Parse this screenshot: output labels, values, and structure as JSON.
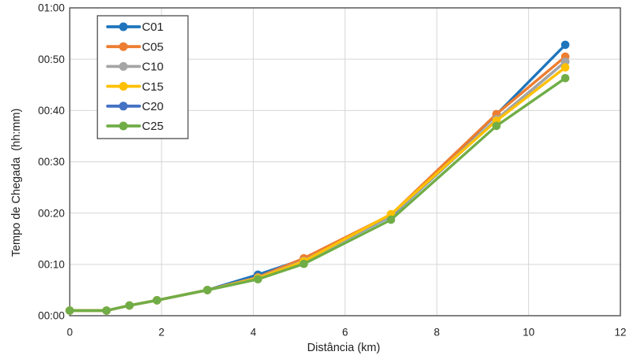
{
  "chart_data": {
    "type": "line",
    "title": "",
    "xlabel": "Distância (km)",
    "ylabel": "Tempo de Chegada  (hh:mm)",
    "x_unit": "km",
    "y_unit": "arrival time hh:mm (stored as minutes since 00:00)",
    "xlim": [
      0,
      12
    ],
    "ylim_minutes": [
      0,
      60
    ],
    "grid": true,
    "legend_position": "top-left-inside",
    "marker": "circle",
    "x": [
      0,
      0.8,
      1.3,
      1.9,
      3.0,
      4.1,
      5.1,
      7.0,
      9.3,
      10.8
    ],
    "x_ticks": [
      0,
      2,
      4,
      6,
      8,
      10,
      12
    ],
    "y_ticks": [
      {
        "label": "00:00",
        "minutes": 0
      },
      {
        "label": "00:10",
        "minutes": 10
      },
      {
        "label": "00:20",
        "minutes": 20
      },
      {
        "label": "00:30",
        "minutes": 30
      },
      {
        "label": "00:40",
        "minutes": 40
      },
      {
        "label": "00:50",
        "minutes": 50
      },
      {
        "label": "01:00",
        "minutes": 60
      }
    ],
    "series": [
      {
        "name": "C01",
        "color": "#1F75BC",
        "values_min": [
          1,
          1,
          2,
          3,
          5,
          8.0,
          11.0,
          19.6,
          39.2,
          52.8
        ]
      },
      {
        "name": "C05",
        "color": "#ED7D31",
        "values_min": [
          1,
          1,
          2,
          3,
          5,
          7.5,
          11.2,
          19.7,
          39.3,
          50.5
        ]
      },
      {
        "name": "C10",
        "color": "#A5A5A5",
        "values_min": [
          1,
          1,
          2,
          3,
          5,
          7.4,
          10.7,
          19.5,
          38.3,
          49.5
        ]
      },
      {
        "name": "C15",
        "color": "#FFC000",
        "values_min": [
          1,
          1,
          2,
          3,
          5,
          7.3,
          10.6,
          19.8,
          38.0,
          48.4
        ]
      },
      {
        "name": "C20",
        "color": "#4472C4",
        "values_min": [
          1,
          1,
          2,
          3,
          5,
          7.4,
          10.7,
          19.4,
          38.2,
          49.5
        ]
      },
      {
        "name": "C25",
        "color": "#70AD47",
        "values_min": [
          1,
          1,
          2,
          3,
          5,
          7.1,
          10.1,
          18.7,
          37.0,
          46.3
        ]
      }
    ],
    "draw_order": [
      "C20",
      "C01",
      "C05",
      "C10",
      "C15",
      "C25"
    ],
    "colors": {
      "gridline": "#D6D6D6",
      "plot_border": "#595959",
      "background": "#FFFFFF",
      "text": "#1F1F1F"
    }
  }
}
